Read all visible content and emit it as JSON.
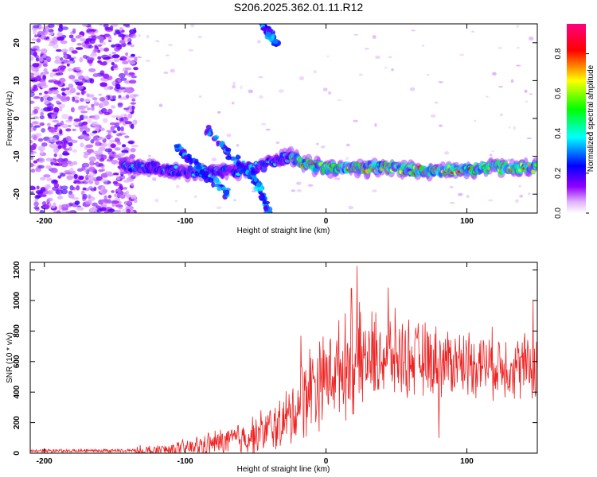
{
  "figure_title": "S206.2025.362.01.11.R12",
  "chart_data": [
    {
      "type": "heatmap",
      "title": "S206.2025.362.01.11.R12",
      "xlabel": "Height of straight line (km)",
      "ylabel": "Frequency (Hz)",
      "xlim": [
        -210,
        150
      ],
      "ylim": [
        -25,
        25
      ],
      "xticks": [
        -200,
        -100,
        0,
        100
      ],
      "xtick_labels": [
        "-200",
        "-100",
        "0",
        "100"
      ],
      "yticks": [
        -20,
        -10,
        0,
        10,
        20
      ],
      "ytick_labels": [
        "-20",
        "-10",
        "0",
        "10",
        "20"
      ],
      "colorbar": {
        "label": "Normalized spectral amplitude",
        "range": [
          0.0,
          0.95
        ],
        "ticks": [
          0.0,
          0.2,
          0.4,
          0.6,
          0.8
        ],
        "tick_labels": [
          "0.0",
          "0.2",
          "0.4",
          "0.6",
          "0.8"
        ],
        "colormap": [
          "#ffffff",
          "#b400ff",
          "#0000ff",
          "#00ffff",
          "#00ff00",
          "#ffff00",
          "#ff0000",
          "#ff0080"
        ]
      },
      "features": {
        "noise_region_x": [
          -210,
          -135
        ],
        "main_band": [
          {
            "x": -145,
            "freq": -12.5
          },
          {
            "x": -120,
            "freq": -13
          },
          {
            "x": -100,
            "freq": -14
          },
          {
            "x": -60,
            "freq": -14
          },
          {
            "x": -25,
            "freq": -10
          },
          {
            "x": -15,
            "freq": -12
          },
          {
            "x": 0,
            "freq": -13
          },
          {
            "x": 40,
            "freq": -13
          },
          {
            "x": 80,
            "freq": -14
          },
          {
            "x": 120,
            "freq": -13
          },
          {
            "x": 150,
            "freq": -13
          }
        ],
        "diagonal_streaks": [
          {
            "x": [
              -105,
              -70
            ],
            "freq": [
              -8,
              -20
            ]
          },
          {
            "x": [
              -85,
              -45
            ],
            "freq": [
              -3,
              -18
            ]
          },
          {
            "x": [
              -55,
              -40
            ],
            "freq": [
              -12,
              -25
            ]
          },
          {
            "x": [
              -45,
              -35
            ],
            "freq": [
              25,
              20
            ]
          }
        ]
      }
    },
    {
      "type": "line",
      "title": "",
      "xlabel": "Height of straight line (km)",
      "ylabel": "SNR (10 * v/v)",
      "xlim": [
        -210,
        150
      ],
      "ylim": [
        0,
        1250
      ],
      "xticks": [
        -200,
        -100,
        0,
        100
      ],
      "xtick_labels": [
        "-200",
        "-100",
        "0",
        "100"
      ],
      "yticks": [
        0,
        200,
        400,
        600,
        800,
        1000,
        1200
      ],
      "ytick_labels": [
        "0",
        "200",
        "400",
        "600",
        "800",
        "1000",
        "1200"
      ],
      "series": [
        {
          "name": "SNR",
          "color": "#ee2222",
          "envelope": {
            "x": [
              -210,
              -150,
              -130,
              -100,
              -75,
              -50,
              -30,
              -20,
              -15,
              -10,
              0,
              10,
              20,
              30,
              45,
              60,
              80,
              100,
              120,
              140,
              150
            ],
            "base": [
              5,
              5,
              10,
              30,
              70,
              120,
              200,
              300,
              400,
              450,
              500,
              560,
              600,
              620,
              640,
              620,
              600,
              600,
              580,
              570,
              560
            ],
            "amplitude": [
              25,
              25,
              50,
              70,
              110,
              160,
              220,
              300,
              350,
              380,
              340,
              360,
              420,
              360,
              340,
              300,
              280,
              260,
              260,
              260,
              260
            ],
            "peaks": [
              {
                "x": 22,
                "y": 1225
              },
              {
                "x": 18,
                "y": 1080
              },
              {
                "x": 44,
                "y": 1085
              },
              {
                "x": -18,
                "y": 770
              },
              {
                "x": 147,
                "y": 1000
              },
              {
                "x": 80,
                "y": 100
              }
            ]
          }
        }
      ]
    }
  ]
}
